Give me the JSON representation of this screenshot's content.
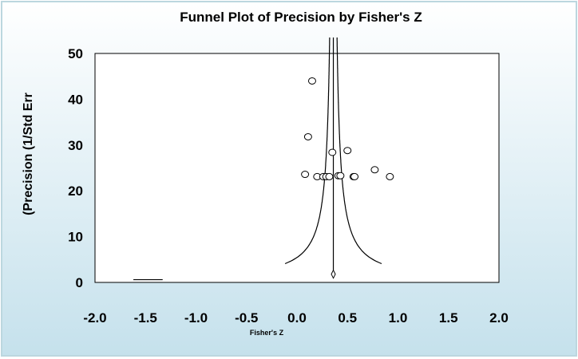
{
  "chart_data": {
    "type": "scatter",
    "title": "Funnel Plot of Precision by Fisher's Z",
    "xlabel": "Fisher's Z",
    "ylabel": "(Precision (1/Std Err",
    "xlim": [
      -2.0,
      2.0
    ],
    "ylim": [
      0,
      50
    ],
    "x_ticks": [
      "-2.0",
      "-1.5",
      "-1.0",
      "-0.5",
      "0.0",
      "0.5",
      "1.0",
      "1.5",
      "2.0"
    ],
    "y_ticks": [
      "0",
      "10",
      "20",
      "30",
      "40",
      "50"
    ],
    "grid": false,
    "legend": "none",
    "summary_effect": 0.36,
    "summary_marker": {
      "x": 0.36,
      "y": 1.8
    },
    "points": [
      {
        "x": 0.15,
        "y": 44.0
      },
      {
        "x": 0.11,
        "y": 31.8
      },
      {
        "x": 0.35,
        "y": 28.4
      },
      {
        "x": 0.5,
        "y": 28.8
      },
      {
        "x": 0.77,
        "y": 24.6
      },
      {
        "x": 0.08,
        "y": 23.6
      },
      {
        "x": 0.2,
        "y": 23.1
      },
      {
        "x": 0.26,
        "y": 23.1
      },
      {
        "x": 0.29,
        "y": 23.1
      },
      {
        "x": 0.32,
        "y": 23.1
      },
      {
        "x": 0.41,
        "y": 23.3
      },
      {
        "x": 0.43,
        "y": 23.3
      },
      {
        "x": 0.56,
        "y": 23.1
      },
      {
        "x": 0.57,
        "y": 23.1
      },
      {
        "x": 0.92,
        "y": 23.1
      }
    ],
    "extra_segment": {
      "x": [
        -1.62,
        -1.33
      ],
      "y": [
        0.6,
        0.6
      ]
    }
  }
}
